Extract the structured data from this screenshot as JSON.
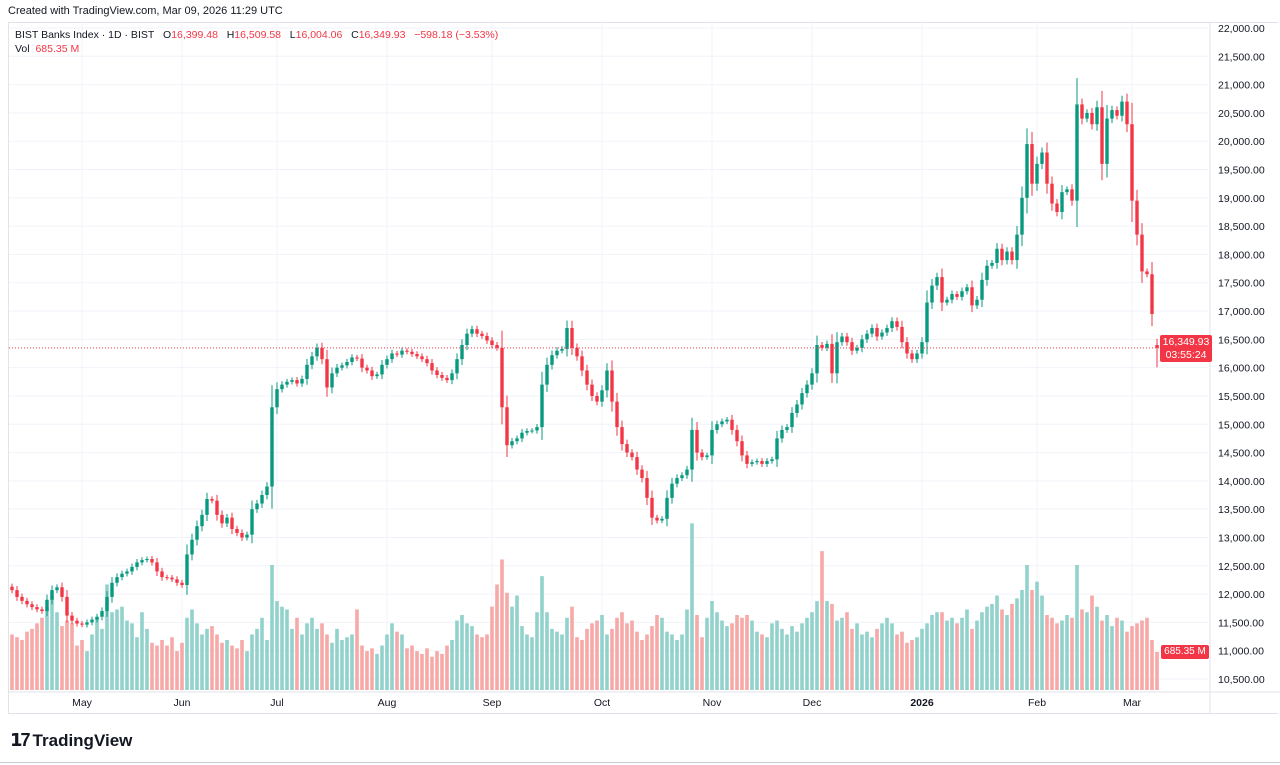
{
  "created_text": "Created with TradingView.com, Mar 09, 2026 11:29 UTC",
  "legend": {
    "symbol": "BIST Banks Index · 1D · BIST",
    "open_label": "O",
    "open": "16,399.48",
    "high_label": "H",
    "high": "16,509.58",
    "low_label": "L",
    "low": "16,004.06",
    "close_label": "C",
    "close": "16,349.93",
    "change": "−598.18 (−3.53%)",
    "vol_label": "Vol",
    "vol": "685.35 M"
  },
  "price_tag": {
    "price": "16,349.93",
    "countdown": "03:55:24"
  },
  "vol_tag": "685.35 M",
  "footer": {
    "logo_text": "TradingView"
  },
  "colors": {
    "up": "#089981",
    "down": "#f23645",
    "vol_up": "#92d2cc",
    "vol_down": "#f7a9a7",
    "grid": "#f0f3fa"
  },
  "chart_data": {
    "type": "candlestick",
    "title": "BIST Banks Index · 1D · BIST",
    "ylim": [
      10500,
      22000
    ],
    "y_ticks": [
      "10,500.00",
      "11,000.00",
      "11,500.00",
      "12,000.00",
      "12,500.00",
      "13,000.00",
      "13,500.00",
      "14,000.00",
      "14,500.00",
      "15,000.00",
      "15,500.00",
      "16,000.00",
      "16,500.00",
      "17,000.00",
      "17,500.00",
      "18,000.00",
      "18,500.00",
      "19,000.00",
      "19,500.00",
      "20,000.00",
      "20,500.00",
      "21,000.00",
      "21,500.00",
      "22,000.00"
    ],
    "x_ticks": [
      {
        "label": "May",
        "index": 14
      },
      {
        "label": "Jun",
        "index": 34
      },
      {
        "label": "Jul",
        "index": 53
      },
      {
        "label": "Aug",
        "index": 75
      },
      {
        "label": "Sep",
        "index": 96
      },
      {
        "label": "Oct",
        "index": 118
      },
      {
        "label": "Nov",
        "index": 140
      },
      {
        "label": "Dec",
        "index": 160
      },
      {
        "label": "2026",
        "index": 182,
        "bold": true
      },
      {
        "label": "Feb",
        "index": 205
      },
      {
        "label": "Mar",
        "index": 224
      }
    ],
    "grid": true,
    "last_candle": {
      "open": 16399.48,
      "high": 16509.58,
      "low": 16004.06,
      "close": 16349.93
    },
    "close": [
      12070,
      11950,
      11880,
      11820,
      11770,
      11730,
      11700,
      11900,
      12070,
      12120,
      11950,
      11620,
      11530,
      11480,
      11460,
      11500,
      11550,
      11600,
      11700,
      11950,
      12200,
      12300,
      12360,
      12400,
      12480,
      12560,
      12600,
      12620,
      12560,
      12400,
      12300,
      12290,
      12260,
      12200,
      12160,
      12700,
      12960,
      13200,
      13400,
      13680,
      13650,
      13400,
      13250,
      13350,
      13150,
      13080,
      13000,
      13050,
      13500,
      13600,
      13750,
      13900,
      15300,
      15620,
      15700,
      15750,
      15780,
      15720,
      15800,
      16050,
      16200,
      16350,
      16150,
      15650,
      15900,
      16000,
      16040,
      16100,
      16180,
      16160,
      16000,
      15950,
      15850,
      15880,
      16050,
      16150,
      16250,
      16230,
      16300,
      16280,
      16240,
      16200,
      16150,
      16080,
      15950,
      15870,
      15820,
      15780,
      15900,
      16150,
      16400,
      16600,
      16680,
      16600,
      16560,
      16480,
      16400,
      16350,
      15300,
      14630,
      14700,
      14750,
      14850,
      14880,
      14890,
      14950,
      15700,
      16050,
      16220,
      16300,
      16330,
      16700,
      16350,
      16200,
      15950,
      15700,
      15500,
      15400,
      15600,
      15950,
      15400,
      14950,
      14650,
      14500,
      14420,
      14200,
      14050,
      13700,
      13350,
      13300,
      13330,
      13700,
      13950,
      14050,
      14100,
      14200,
      14900,
      14500,
      14420,
      14450,
      14900,
      15000,
      15050,
      15080,
      14900,
      14700,
      14450,
      14300,
      14330,
      14350,
      14300,
      14350,
      14380,
      14750,
      14900,
      14950,
      15200,
      15350,
      15550,
      15700,
      15900,
      16400,
      16350,
      16420,
      15900,
      16450,
      16550,
      16450,
      16300,
      16350,
      16500,
      16600,
      16700,
      16550,
      16620,
      16700,
      16820,
      16720,
      16450,
      16250,
      16150,
      16250,
      16450,
      17150,
      17450,
      17600,
      17150,
      17200,
      17300,
      17250,
      17350,
      17420,
      17100,
      17200,
      17550,
      17800,
      17850,
      18100,
      17900,
      18050,
      17900,
      18350,
      19000,
      19950,
      19250,
      19600,
      19800,
      19250,
      18900,
      18750,
      19100,
      19150,
      18950,
      20650,
      20400,
      20500,
      20300,
      20600,
      19600,
      20400,
      20550,
      20450,
      20700,
      20300,
      18950,
      18350,
      17700,
      17650,
      16948.11,
      16349.93
    ],
    "volume_unit": "M",
    "volume": [
      1000,
      950,
      900,
      1050,
      1100,
      1200,
      1300,
      1500,
      1700,
      1400,
      1150,
      1250,
      1200,
      800,
      900,
      700,
      1000,
      1300,
      1100,
      1900,
      1400,
      1450,
      1500,
      1250,
      1200,
      950,
      1400,
      1100,
      850,
      800,
      900,
      800,
      950,
      700,
      850,
      1300,
      1450,
      1200,
      1000,
      1100,
      1150,
      1000,
      850,
      900,
      800,
      750,
      900,
      700,
      1000,
      1100,
      1300,
      900,
      2250,
      1600,
      1500,
      1450,
      1100,
      1300,
      1000,
      1200,
      1300,
      1100,
      1200,
      1000,
      850,
      1100,
      900,
      950,
      1000,
      1450,
      800,
      700,
      750,
      650,
      800,
      1000,
      1200,
      1050,
      1000,
      750,
      800,
      700,
      650,
      750,
      600,
      700,
      650,
      800,
      900,
      1250,
      1350,
      1200,
      1150,
      1000,
      950,
      1000,
      1500,
      1900,
      2350,
      1750,
      1500,
      1700,
      1150,
      1000,
      950,
      1400,
      2050,
      1400,
      1100,
      1050,
      1000,
      1300,
      1500,
      950,
      900,
      1100,
      1200,
      1250,
      1350,
      1000,
      1100,
      1300,
      1400,
      1200,
      1250,
      1050,
      900,
      1000,
      1150,
      1350,
      1300,
      1050,
      1000,
      900,
      1000,
      1450,
      3000,
      1350,
      950,
      1300,
      1600,
      1400,
      1250,
      1150,
      1200,
      1350,
      1300,
      1350,
      1250,
      1050,
      1000,
      950,
      1200,
      1250,
      1100,
      1000,
      1150,
      1050,
      1200,
      1300,
      1400,
      1600,
      2500,
      1600,
      1550,
      1250,
      1300,
      1400,
      1100,
      1200,
      1000,
      1050,
      950,
      1100,
      1200,
      1300,
      1200,
      1000,
      1050,
      850,
      900,
      950,
      1100,
      1200,
      1350,
      1400,
      1400,
      1250,
      1300,
      1200,
      1300,
      1450,
      1100,
      1250,
      1400,
      1500,
      1550,
      1700,
      1450,
      1350,
      1550,
      1650,
      1800,
      2250,
      1800,
      1950,
      1700,
      1350,
      1300,
      1200,
      1250,
      1350,
      1300,
      2250,
      1450,
      1400,
      1700,
      1500,
      1250,
      1350,
      1150,
      1300,
      1250,
      1050,
      1150,
      1200,
      1250,
      1300,
      900,
      685.35
    ]
  }
}
